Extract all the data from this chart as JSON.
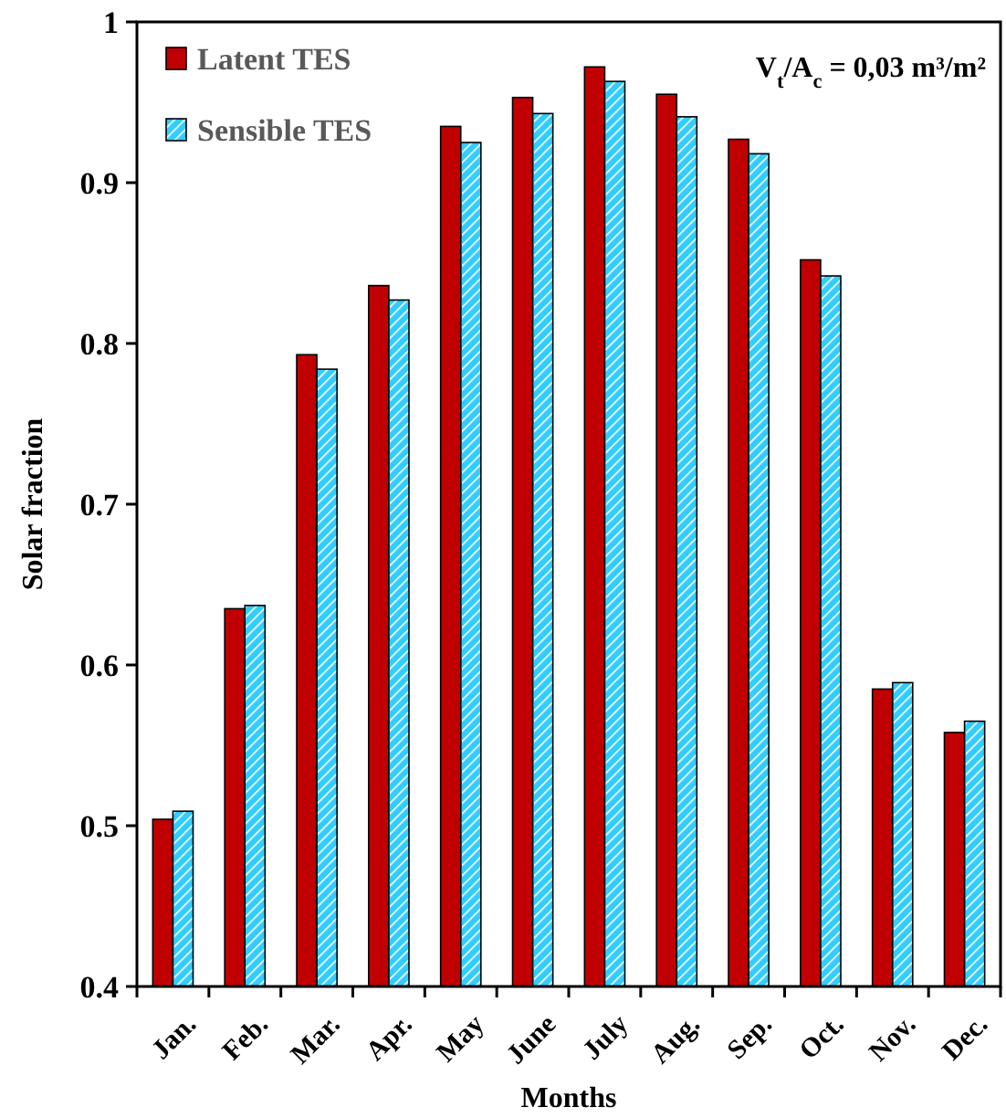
{
  "chart_data": {
    "type": "bar",
    "xlabel": "Months",
    "ylabel": "Solar fraction",
    "categories": [
      "Jan.",
      "Feb.",
      "Mar.",
      "Apr.",
      "May",
      "June",
      "July",
      "Aug.",
      "Sep.",
      "Oct.",
      "Nov.",
      "Dec."
    ],
    "series": [
      {
        "name": "Latent TES",
        "color": "#c00000",
        "values": [
          0.504,
          0.635,
          0.793,
          0.836,
          0.935,
          0.953,
          0.972,
          0.955,
          0.927,
          0.852,
          0.585,
          0.558
        ]
      },
      {
        "name": "Sensible TES",
        "color": "#33ccff",
        "values": [
          0.509,
          0.637,
          0.784,
          0.827,
          0.925,
          0.943,
          0.963,
          0.941,
          0.918,
          0.842,
          0.589,
          0.565
        ]
      }
    ],
    "ylim": [
      0.4,
      1
    ],
    "yticks": [
      0.4,
      0.5,
      0.6,
      0.7,
      0.8,
      0.9,
      1
    ],
    "grid": false,
    "legend": "top left",
    "annotations": [
      "V$_{t}$/A$_{c}$ = 0,03 m³/m²"
    ]
  }
}
